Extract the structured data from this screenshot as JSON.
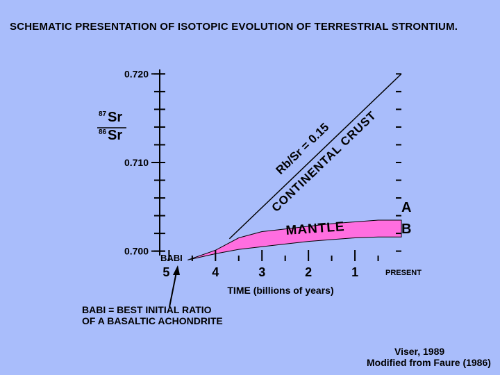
{
  "page_title": "SCHEMATIC PRESENTATION OF ISOTOPIC EVOLUTION OF TERRESTRIAL STRONTIUM.",
  "colors": {
    "background": "#a9bdfb",
    "mantle_fill": "#ff6ee0",
    "ink": "#000000"
  },
  "chart_data": {
    "type": "area",
    "title": "",
    "xlabel": "TIME (billions of years)",
    "ylabel_top": "Sr",
    "ylabel_top_sup": "87",
    "ylabel_bottom": "Sr",
    "ylabel_bottom_sup": "86",
    "x_reversed": true,
    "xlim": [
      5.2,
      0
    ],
    "ylim": [
      0.6995,
      0.7205
    ],
    "x_ticks": [
      {
        "value": 5,
        "label": "5"
      },
      {
        "value": 4,
        "label": "4"
      },
      {
        "value": 3,
        "label": "3"
      },
      {
        "value": 2,
        "label": "2"
      },
      {
        "value": 1,
        "label": "1"
      },
      {
        "value": 0,
        "label": "PRESENT"
      }
    ],
    "y_ticks": [
      {
        "value": 0.7,
        "label": "0.700"
      },
      {
        "value": 0.71,
        "label": "0.710"
      },
      {
        "value": 0.72,
        "label": "0.720"
      }
    ],
    "y_minor_step": 0.002,
    "series": [
      {
        "name": "CONTINENTAL CRUST",
        "kind": "line",
        "label_lines": [
          "Rb/Sr = 0.15",
          "CONTINENTAL CRUST"
        ],
        "x": [
          3.7,
          0
        ],
        "y": [
          0.7014,
          0.72
        ]
      },
      {
        "name": "MANTLE",
        "kind": "band",
        "x": [
          4.6,
          4.0,
          3.5,
          3.0,
          2.5,
          2.0,
          1.5,
          1.0,
          0.5,
          0
        ],
        "upper": [
          0.699,
          0.7001,
          0.7015,
          0.7022,
          0.7025,
          0.7028,
          0.7031,
          0.7033,
          0.7035,
          0.7035
        ],
        "lower": [
          0.699,
          0.6997,
          0.7002,
          0.7005,
          0.7008,
          0.7011,
          0.7013,
          0.7015,
          0.7016,
          0.7016
        ]
      }
    ],
    "annotations": {
      "A": "A",
      "B": "B",
      "babi_marker": "BABI"
    }
  },
  "footnote": {
    "line1": "BABI = BEST INITIAL RATIO",
    "line2": "OF A BASALTIC ACHONDRITE"
  },
  "credit": {
    "line1": "Viser, 1989",
    "line2": "Modified from Faure (1986)"
  }
}
